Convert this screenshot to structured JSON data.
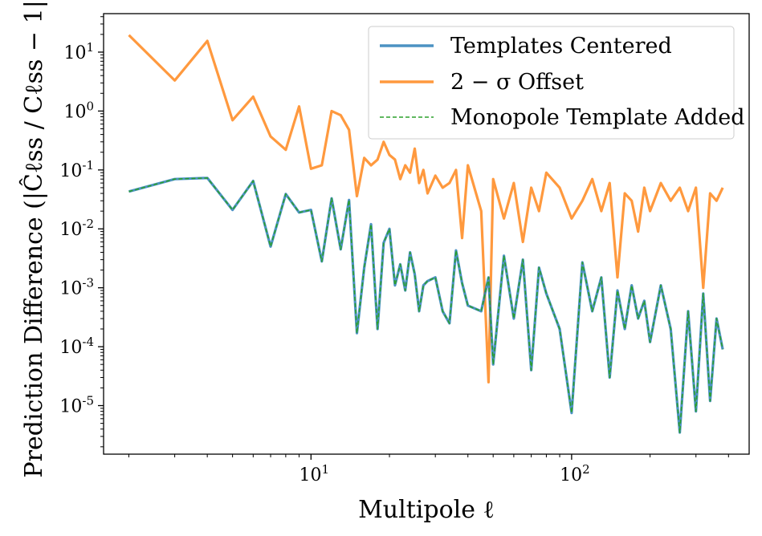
{
  "chart_data": {
    "type": "line",
    "xscale": "log",
    "yscale": "log",
    "xlim": [
      1.6,
      480
    ],
    "ylim": [
      1.5e-06,
      45
    ],
    "xlabel": "Multipole ℓ",
    "ylabel": "Prediction Difference (|Ĉℓss / Cℓss − 1|)",
    "x_ticks": [
      {
        "value": 10,
        "label": "10",
        "sup": "1"
      },
      {
        "value": 100,
        "label": "10",
        "sup": "2"
      }
    ],
    "y_ticks": [
      {
        "value": 10,
        "label": "10",
        "sup": "1"
      },
      {
        "value": 1,
        "label": "10",
        "sup": "0"
      },
      {
        "value": 0.1,
        "label": "10",
        "sup": "-1"
      },
      {
        "value": 0.01,
        "label": "10",
        "sup": "-2"
      },
      {
        "value": 0.001,
        "label": "10",
        "sup": "-3"
      },
      {
        "value": 0.0001,
        "label": "10",
        "sup": "-4"
      },
      {
        "value": 1e-05,
        "label": "10",
        "sup": "-5"
      }
    ],
    "legend_position": "top-right",
    "series": [
      {
        "name": "Templates Centered",
        "color": "#1f77b4",
        "style": "solid",
        "x": [
          2,
          3,
          4,
          5,
          6,
          7,
          8,
          9,
          10,
          11,
          12,
          13,
          14,
          15,
          16,
          17,
          18,
          19,
          20,
          21,
          22,
          23,
          24,
          25,
          26,
          27,
          28,
          30,
          32,
          34,
          36,
          38,
          40,
          45,
          48,
          50,
          55,
          60,
          65,
          70,
          75,
          80,
          90,
          100,
          110,
          120,
          130,
          140,
          150,
          160,
          170,
          180,
          190,
          200,
          220,
          240,
          260,
          280,
          300,
          320,
          340,
          360,
          380
        ],
        "values": [
          0.043,
          0.07,
          0.073,
          0.021,
          0.065,
          0.005,
          0.039,
          0.019,
          0.021,
          0.0028,
          0.033,
          0.0045,
          0.031,
          0.00017,
          0.0022,
          0.012,
          0.0002,
          0.0058,
          0.01,
          0.0011,
          0.0025,
          0.0009,
          0.004,
          0.0017,
          0.0004,
          0.0011,
          0.0013,
          0.0015,
          0.0004,
          0.00025,
          0.0043,
          0.0012,
          0.0005,
          0.0004,
          0.0015,
          5e-05,
          0.0035,
          0.0003,
          0.003,
          4e-05,
          0.0022,
          0.0008,
          0.0002,
          7.5e-06,
          0.0027,
          0.0004,
          0.0015,
          3e-05,
          0.0009,
          0.0002,
          0.0011,
          0.0003,
          0.0006,
          0.00012,
          0.0011,
          0.0002,
          3.5e-06,
          0.0004,
          8e-06,
          0.0008,
          1.2e-05,
          0.0003,
          9e-05
        ]
      },
      {
        "name": "2 − σ Offset",
        "color": "#ff7f0e",
        "style": "solid",
        "x": [
          2,
          3,
          4,
          5,
          6,
          7,
          8,
          9,
          10,
          11,
          12,
          13,
          14,
          15,
          16,
          17,
          18,
          19,
          20,
          21,
          22,
          23,
          24,
          25,
          26,
          27,
          28,
          30,
          32,
          34,
          36,
          38,
          40,
          45,
          48,
          50,
          55,
          60,
          65,
          70,
          75,
          80,
          90,
          100,
          110,
          120,
          130,
          140,
          150,
          160,
          170,
          180,
          190,
          200,
          220,
          240,
          260,
          280,
          300,
          320,
          340,
          360,
          380
        ],
        "values": [
          19.5,
          3.3,
          15.5,
          0.7,
          1.75,
          0.37,
          0.22,
          1.2,
          0.105,
          0.12,
          1.0,
          0.85,
          0.48,
          0.036,
          0.16,
          0.12,
          0.15,
          0.3,
          0.18,
          0.15,
          0.07,
          0.12,
          0.09,
          0.23,
          0.06,
          0.1,
          0.04,
          0.08,
          0.05,
          0.06,
          0.1,
          0.007,
          0.12,
          0.02,
          2.5e-05,
          0.07,
          0.015,
          0.06,
          0.006,
          0.05,
          0.02,
          0.09,
          0.05,
          0.015,
          0.03,
          0.07,
          0.02,
          0.06,
          0.0015,
          0.04,
          0.03,
          0.009,
          0.05,
          0.02,
          0.06,
          0.03,
          0.05,
          0.02,
          0.05,
          0.001,
          0.04,
          0.03,
          0.05
        ]
      },
      {
        "name": "Monopole Template Added",
        "color": "#2ca02c",
        "style": "dashed",
        "x": [
          2,
          3,
          4,
          5,
          6,
          7,
          8,
          9,
          10,
          11,
          12,
          13,
          14,
          15,
          16,
          17,
          18,
          19,
          20,
          21,
          22,
          23,
          24,
          25,
          26,
          27,
          28,
          30,
          32,
          34,
          36,
          38,
          40,
          45,
          48,
          50,
          55,
          60,
          65,
          70,
          75,
          80,
          90,
          100,
          110,
          120,
          130,
          140,
          150,
          160,
          170,
          180,
          190,
          200,
          220,
          240,
          260,
          280,
          300,
          320,
          340,
          360,
          380
        ],
        "values": [
          0.043,
          0.07,
          0.073,
          0.021,
          0.065,
          0.005,
          0.039,
          0.019,
          0.021,
          0.0028,
          0.033,
          0.0045,
          0.031,
          0.00017,
          0.0022,
          0.012,
          0.0002,
          0.0058,
          0.01,
          0.0011,
          0.0025,
          0.0009,
          0.004,
          0.0017,
          0.0004,
          0.0011,
          0.0013,
          0.0015,
          0.0004,
          0.00025,
          0.0043,
          0.0012,
          0.0005,
          0.0004,
          0.0015,
          5e-05,
          0.0035,
          0.0003,
          0.003,
          4e-05,
          0.0022,
          0.0008,
          0.0002,
          7.5e-06,
          0.0027,
          0.0004,
          0.0015,
          3e-05,
          0.0009,
          0.0002,
          0.0011,
          0.0003,
          0.0006,
          0.00012,
          0.0011,
          0.0002,
          3.5e-06,
          0.0004,
          8e-06,
          0.0008,
          1.2e-05,
          0.0003,
          9e-05
        ]
      }
    ]
  }
}
